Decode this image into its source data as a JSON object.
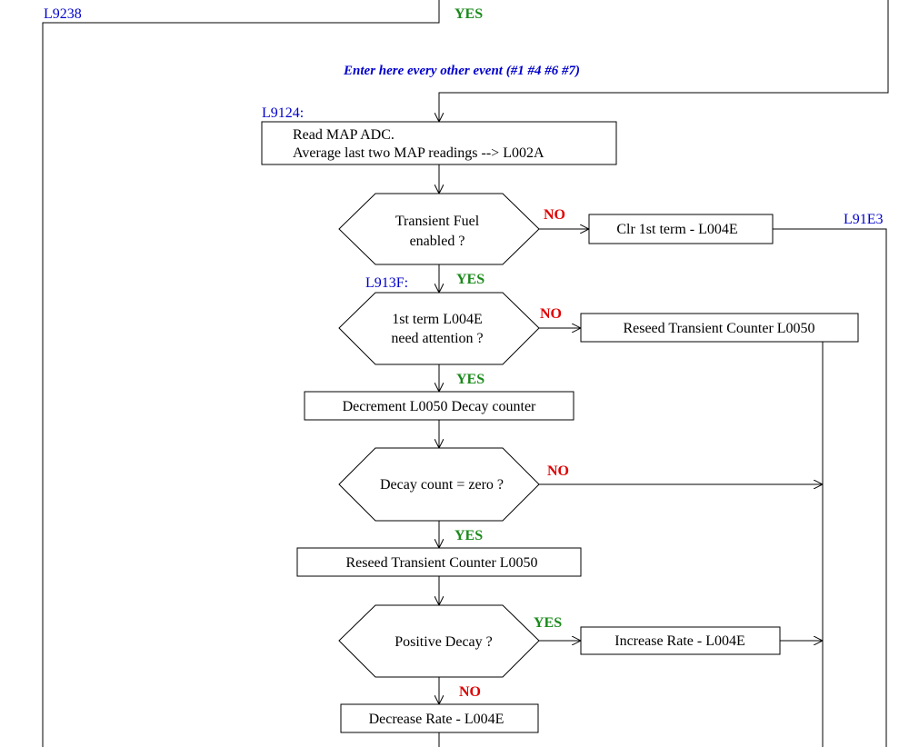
{
  "labels": {
    "l9238": "L9238",
    "l9124": "L9124:",
    "l913f": "L913F:",
    "l91e3": "L91E3"
  },
  "entry_note": "Enter here every other event (#1 #4 #6 #7)",
  "boxes": {
    "read_map_line1": "Read MAP ADC.",
    "read_map_line2": "Average last two MAP readings --> L002A",
    "clr_first_term": "Clr 1st term - L004E",
    "reseed_counter_right": "Reseed Transient Counter L0050",
    "decrement_counter": "Decrement L0050 Decay counter",
    "reseed_counter_main": "Reseed Transient Counter L0050",
    "increase_rate": "Increase Rate - L004E",
    "decrease_rate": "Decrease Rate - L004E"
  },
  "decisions": {
    "transient_enabled_line1": "Transient Fuel",
    "transient_enabled_line2": "enabled ?",
    "first_term_line1": "1st term L004E",
    "first_term_line2": "need attention ?",
    "decay_zero": "Decay count = zero ?",
    "positive_decay": "Positive Decay ?"
  },
  "branch": {
    "yes_top": "YES",
    "no_transient": "NO",
    "yes_transient": "YES",
    "no_first_term": "NO",
    "yes_first_term": "YES",
    "no_decay_zero": "NO",
    "yes_decay_zero": "YES",
    "yes_positive": "YES",
    "no_positive": "NO"
  }
}
